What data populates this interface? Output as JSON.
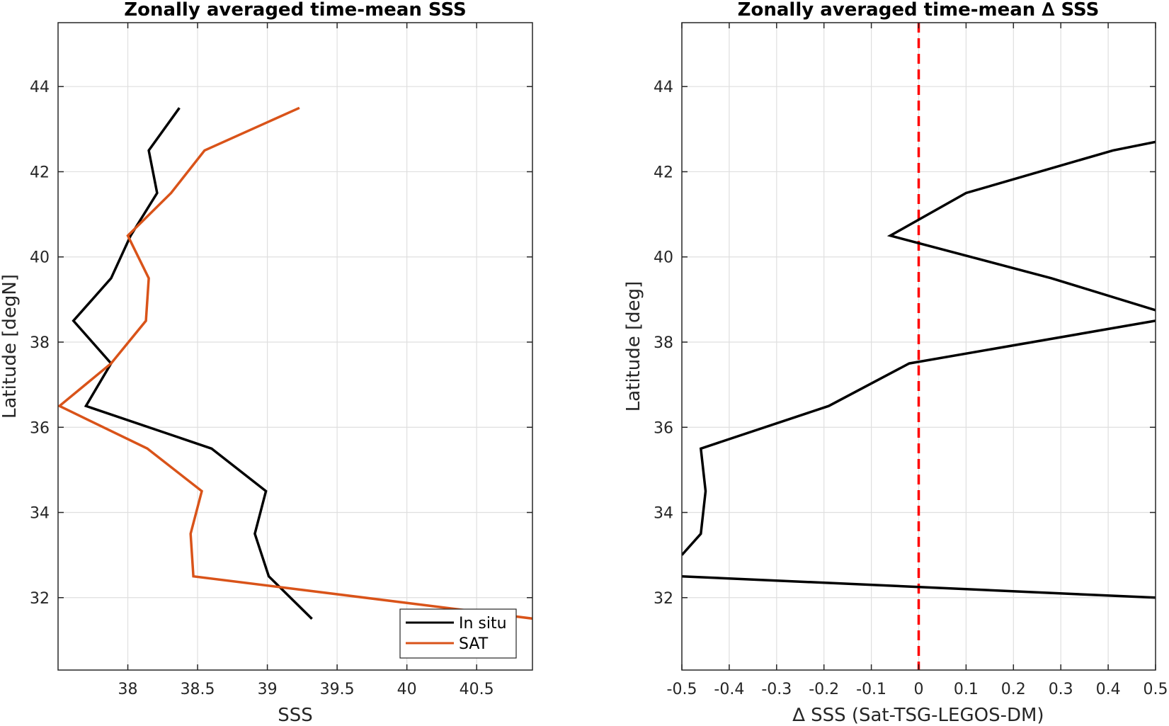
{
  "chart_data": [
    {
      "type": "line",
      "title": "Zonally averaged time-mean SSS",
      "xlabel": "SSS",
      "ylabel": "Latitude [degN]",
      "xlim": [
        37.5,
        40.9
      ],
      "ylim": [
        30.3,
        45.5
      ],
      "xticks": [
        38,
        38.5,
        39,
        39.5,
        40,
        40.5
      ],
      "xtick_labels": [
        "38",
        "38.5",
        "39",
        "39.5",
        "40",
        "40.5"
      ],
      "yticks": [
        32,
        34,
        36,
        38,
        40,
        42,
        44
      ],
      "ytick_labels": [
        "32",
        "34",
        "36",
        "38",
        "40",
        "42",
        "44"
      ],
      "grid": true,
      "legend": "bottom-right",
      "series": [
        {
          "name": "In situ",
          "color": "#000000",
          "x": [
            38.37,
            38.15,
            38.21,
            38.02,
            37.88,
            37.61,
            37.88,
            37.7,
            38.6,
            38.99,
            38.91,
            39.01,
            39.32
          ],
          "y": [
            43.5,
            42.5,
            41.5,
            40.5,
            39.5,
            38.5,
            37.5,
            36.5,
            35.5,
            34.5,
            33.5,
            32.5,
            31.5
          ]
        },
        {
          "name": "SAT",
          "color": "#D95319",
          "x": [
            39.23,
            38.55,
            38.31,
            38.0,
            38.15,
            38.13,
            37.88,
            37.51,
            38.14,
            38.53,
            38.45,
            38.47,
            40.92
          ],
          "y": [
            43.5,
            42.5,
            41.5,
            40.5,
            39.5,
            38.5,
            37.5,
            36.5,
            35.5,
            34.5,
            33.5,
            32.5,
            31.5
          ]
        }
      ]
    },
    {
      "type": "line",
      "title": "Zonally averaged time-mean ∆ SSS",
      "xlabel": "∆ SSS (Sat-TSG-LEGOS-DM)",
      "ylabel": "Latitude [deg]",
      "xlim": [
        -0.5,
        0.5
      ],
      "ylim": [
        30.3,
        45.5
      ],
      "xticks": [
        -0.5,
        -0.4,
        -0.3,
        -0.2,
        -0.1,
        0,
        0.1,
        0.2,
        0.3,
        0.4,
        0.5
      ],
      "xtick_labels": [
        "-0.5",
        "-0.4",
        "-0.3",
        "-0.2",
        "-0.1",
        "0",
        "0.1",
        "0.2",
        "0.3",
        "0.4",
        "0.5"
      ],
      "yticks": [
        32,
        34,
        36,
        38,
        40,
        42,
        44
      ],
      "ytick_labels": [
        "32",
        "34",
        "36",
        "38",
        "40",
        "42",
        "44"
      ],
      "grid": true,
      "series": [
        {
          "color": "#000000",
          "x": [
            0.5,
            0.41,
            0.1,
            -0.06,
            0.28,
            0.5
          ],
          "y": [
            42.7,
            42.5,
            41.5,
            40.5,
            39.5,
            38.75
          ]
        },
        {
          "color": "#000000",
          "x": [
            0.5,
            -0.02,
            -0.19,
            -0.46,
            -0.45,
            -0.46,
            -0.5
          ],
          "y": [
            38.5,
            37.5,
            36.5,
            35.5,
            34.5,
            33.5,
            33.0
          ]
        },
        {
          "color": "#000000",
          "x": [
            -0.5,
            0.5
          ],
          "y": [
            32.5,
            32.0
          ]
        }
      ],
      "reference_line": {
        "x": 0,
        "color": "#FF0000",
        "style": "dashed"
      }
    }
  ]
}
